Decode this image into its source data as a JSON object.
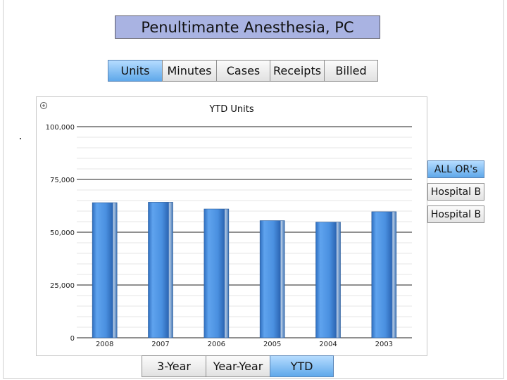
{
  "title": "Penultimante Anesthesia, PC",
  "metric_tabs": [
    {
      "label": "Units",
      "active": true
    },
    {
      "label": "Minutes",
      "active": false
    },
    {
      "label": "Cases",
      "active": false
    },
    {
      "label": "Receipts",
      "active": false
    },
    {
      "label": "Billed",
      "active": false
    }
  ],
  "period_tabs": [
    {
      "label": "3-Year",
      "active": false
    },
    {
      "label": "Year-Year",
      "active": false
    },
    {
      "label": "YTD",
      "active": true
    }
  ],
  "location_buttons": [
    {
      "label": "ALL OR's",
      "active": true
    },
    {
      "label": "Hospital B",
      "active": false
    },
    {
      "label": "Hospital B",
      "active": false
    }
  ],
  "colors": {
    "bar": "#4a90e0",
    "active_tab": "#5fa8ea",
    "title_bg": "#a9b3e2"
  },
  "chart_data": {
    "type": "bar",
    "title": "YTD Units",
    "categories": [
      "2008",
      "2007",
      "2006",
      "2005",
      "2004",
      "2003"
    ],
    "values": [
      64000,
      64200,
      61000,
      55500,
      54800,
      59700
    ],
    "y_ticks": [
      "100,000",
      "75,000",
      "50,000",
      "25,000",
      "0"
    ],
    "ylim": [
      0,
      100000
    ],
    "grid": true,
    "legend": "none"
  }
}
